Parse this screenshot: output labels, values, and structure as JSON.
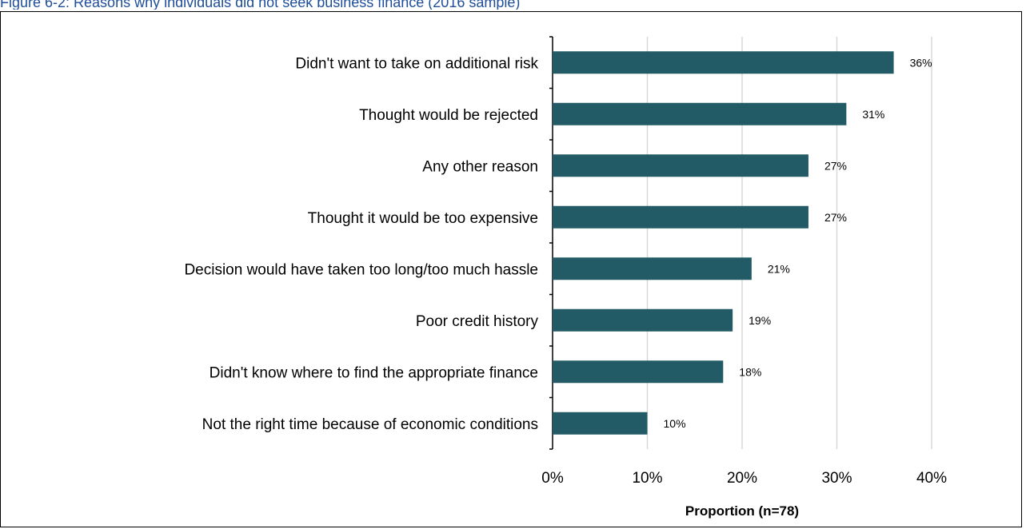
{
  "figure": {
    "caption": "Figure 6-2: Reasons why individuals did not seek business finance (2016 sample)"
  },
  "chart_data": {
    "type": "bar",
    "orientation": "horizontal",
    "categories": [
      "Didn't want to take on additional risk",
      "Thought would be rejected",
      "Any other reason",
      "Thought it would be too expensive",
      "Decision would have taken too long/too much hassle",
      "Poor credit history",
      "Didn't know where to find the appropriate finance",
      "Not the right time because of economic conditions"
    ],
    "values": [
      36,
      31,
      27,
      27,
      21,
      19,
      18,
      10
    ],
    "value_labels": [
      "36%",
      "31%",
      "27%",
      "27%",
      "21%",
      "19%",
      "18%",
      "10%"
    ],
    "xlabel": "Proportion (n=78)",
    "ylabel": "",
    "xlim": [
      0,
      40
    ],
    "x_ticks": [
      "0%",
      "10%",
      "20%",
      "30%",
      "40%"
    ],
    "grid": true,
    "legend": "none",
    "bar_color": "#225b66"
  }
}
